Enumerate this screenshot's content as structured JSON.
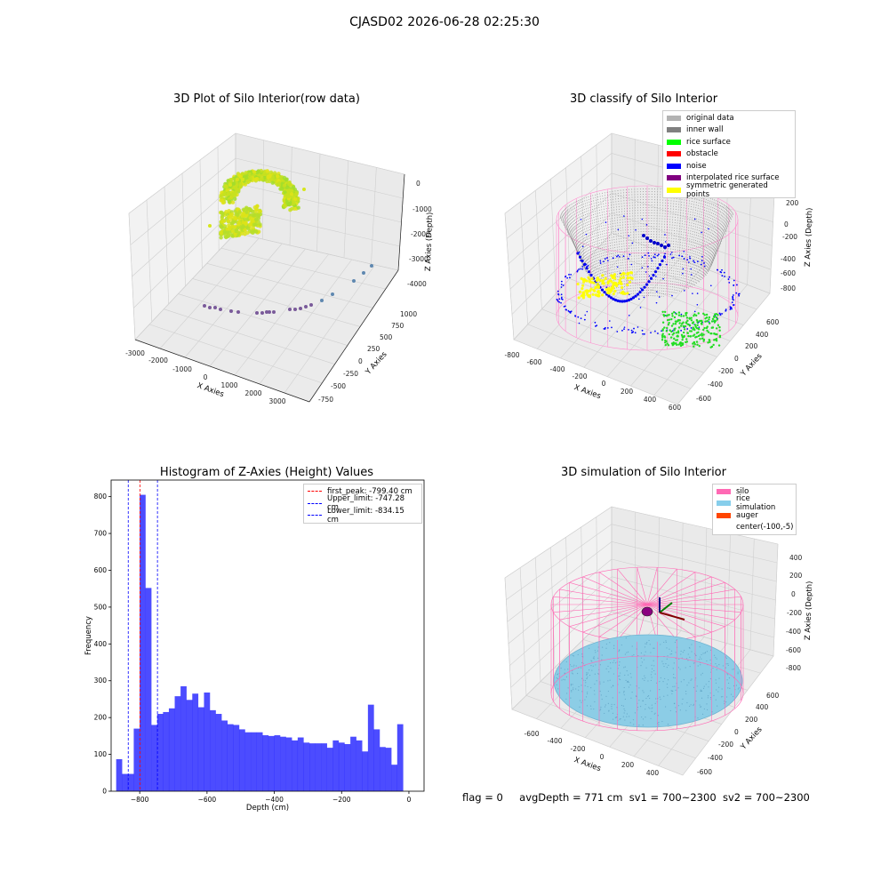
{
  "suptitle": "CJASD02 2026-06-28 02:25:30",
  "status_line": {
    "flag": "flag = 0",
    "avg_depth": "avgDepth = 771 cm",
    "sv1": "sv1 = 700~2300",
    "sv2": "sv2 = 700~2300"
  },
  "chart_data": [
    {
      "id": "raw",
      "type": "scatter",
      "title": "3D Plot of Silo Interior(row data)",
      "xlabel": "X Axies",
      "ylabel": "Y Axies",
      "zlabel": "Z Axies (Depth)",
      "x_ticks": [
        "-3000",
        "-2000",
        "-1000",
        "0",
        "1000",
        "2000",
        "3000"
      ],
      "y_ticks": [
        "-750",
        "-500",
        "-250",
        "0",
        "250",
        "500",
        "750",
        "1000"
      ],
      "z_ticks": [
        "-4000",
        "-3000",
        "-2000",
        "-1000",
        "0"
      ],
      "xlim": [
        -3000,
        3500
      ],
      "ylim": [
        -800,
        1000
      ],
      "zlim": [
        -4500,
        0
      ],
      "colormap": "viridis",
      "grid": true
    },
    {
      "id": "classify",
      "type": "scatter",
      "title": "3D classify of Silo Interior",
      "xlabel": "X Axies",
      "ylabel": "Y Axies",
      "zlabel": "Z Axies (Depth)",
      "x_ticks": [
        "-800",
        "-600",
        "-400",
        "-200",
        "0",
        "200",
        "400",
        "600"
      ],
      "y_ticks": [
        "-600",
        "-400",
        "-200",
        "0",
        "200",
        "400",
        "600"
      ],
      "z_ticks": [
        "-800",
        "-600",
        "-400",
        "-200",
        "0",
        "200"
      ],
      "legend_position": "top-right",
      "series": [
        {
          "name": "original data",
          "color": "#b3b3b3"
        },
        {
          "name": "inner wall",
          "color": "#808080"
        },
        {
          "name": "rice surface",
          "color": "#00ff00"
        },
        {
          "name": "obstacle",
          "color": "#ff0000"
        },
        {
          "name": "noise",
          "color": "#0000ff"
        },
        {
          "name": "interpolated rice surface",
          "color": "#800080"
        },
        {
          "name": "symmetric generated points",
          "color": "#ffff00"
        }
      ],
      "silo_color": "#ff69b4",
      "grid": true
    },
    {
      "id": "histogram",
      "type": "bar",
      "title": "Histogram of Z-Axies (Height) Values",
      "xlabel": "Depth (cm)",
      "ylabel": "Frequency",
      "xlim": [
        -885,
        45
      ],
      "ylim": [
        0,
        845
      ],
      "x_ticks": [
        -800,
        -600,
        -400,
        -200,
        0
      ],
      "y_ticks": [
        0,
        100,
        200,
        300,
        400,
        500,
        600,
        700,
        800
      ],
      "bar_color": "#0000ff",
      "bar_alpha": 0.7,
      "bin_start": -870,
      "bin_width": 17.4,
      "values": [
        87,
        47,
        47,
        170,
        805,
        552,
        180,
        210,
        215,
        225,
        258,
        285,
        248,
        265,
        228,
        268,
        220,
        210,
        192,
        182,
        180,
        168,
        160,
        160,
        160,
        152,
        150,
        152,
        148,
        146,
        138,
        146,
        132,
        130,
        130,
        130,
        118,
        138,
        132,
        128,
        148,
        138,
        108,
        235,
        168,
        120,
        118,
        72,
        182
      ],
      "vlines": [
        {
          "label": "first_peak: -799.40 cm",
          "x": -799.4,
          "color": "#ff0000"
        },
        {
          "label": "Upper_limit: -747.28 cm",
          "x": -747.28,
          "color": "#0000ff"
        },
        {
          "label": "Lower_limit: -834.15 cm",
          "x": -834.15,
          "color": "#0000ff"
        }
      ],
      "legend_position": "top-right",
      "grid": false
    },
    {
      "id": "simulation",
      "type": "scatter",
      "title": "3D simulation of Silo Interior",
      "xlabel": "X Axies",
      "ylabel": "Y Axies",
      "zlabel": "Z Axies (Depth)",
      "x_ticks": [
        "-600",
        "-400",
        "-200",
        "0",
        "200",
        "400"
      ],
      "y_ticks": [
        "-600",
        "-400",
        "-200",
        "0",
        "200",
        "400",
        "600"
      ],
      "z_ticks": [
        "-800",
        "-600",
        "-400",
        "-200",
        "0",
        "200",
        "400"
      ],
      "legend_position": "top-right",
      "series": [
        {
          "name": "silo",
          "color": "#ff69b4"
        },
        {
          "name": "rice simulation",
          "color": "#87ceeb"
        },
        {
          "name": "auger",
          "color": "#ff4500"
        },
        {
          "name": "center(-100,-5)",
          "color": ""
        }
      ],
      "grid": true
    }
  ]
}
